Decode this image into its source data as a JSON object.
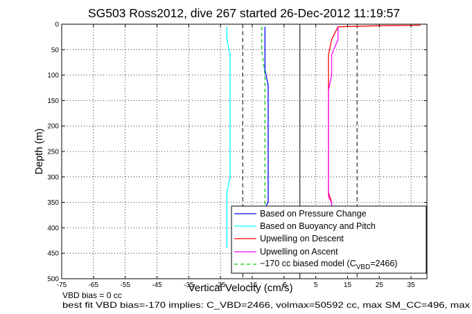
{
  "chart_data": {
    "type": "line",
    "title": "SG503 Ross2012, dive 267 started 26-Dec-2012 11:19:57",
    "xlabel": "Vertical Velocity (cm/s)",
    "ylabel": "Depth (m)",
    "xlim": [
      -75,
      40
    ],
    "ylim": [
      0,
      500
    ],
    "y_reversed": true,
    "grid": true,
    "x_ticks": [
      -75,
      -65,
      -55,
      -45,
      -35,
      -25,
      -15,
      -5,
      5,
      15,
      25,
      35
    ],
    "y_ticks": [
      0,
      50,
      100,
      150,
      200,
      250,
      300,
      350,
      400,
      450,
      500
    ],
    "legend_position": "bottom-right",
    "series": [
      {
        "name": "Based on Pressure Change",
        "color": "#0000ff",
        "x": [
          -11,
          -11,
          -11,
          -11,
          -10,
          -10,
          -10,
          -10,
          -10,
          -10,
          -10,
          -10,
          -10,
          -11,
          -11,
          -11,
          -11
        ],
        "y": [
          5,
          30,
          60,
          90,
          120,
          150,
          180,
          210,
          240,
          270,
          300,
          330,
          350,
          360,
          380,
          400,
          430
        ]
      },
      {
        "name": "Based on Buoyancy and Pitch",
        "color": "#00ffff",
        "x": [
          -23,
          -23,
          -22,
          -22,
          -22,
          -22,
          -22,
          -22,
          -22,
          -22,
          -22,
          -23,
          -23,
          -23
        ],
        "y": [
          5,
          30,
          60,
          90,
          120,
          150,
          180,
          210,
          240,
          270,
          300,
          330,
          370,
          440
        ]
      },
      {
        "name": "Upwelling on Descent",
        "color": "#ff0000",
        "x": [
          38,
          25,
          12,
          10,
          9,
          9,
          9,
          9,
          9,
          9,
          9,
          10,
          10
        ],
        "y": [
          2,
          3,
          5,
          30,
          60,
          100,
          150,
          200,
          250,
          300,
          330,
          350,
          360
        ]
      },
      {
        "name": "Upwelling on Ascent",
        "color": "#ff00ff",
        "x": [
          12,
          12,
          10,
          10,
          9,
          9,
          9,
          9,
          9,
          9,
          9,
          10,
          10
        ],
        "y": [
          5,
          30,
          60,
          100,
          130,
          150,
          200,
          250,
          300,
          320,
          340,
          350,
          360
        ]
      },
      {
        "name": "−170 cc biased model (C_VBD=2466)",
        "color": "#00cc00",
        "dashed": true,
        "x": [
          -12,
          -12,
          -11,
          -11,
          -11,
          -11,
          -11,
          -11,
          -11,
          -11,
          -11
        ],
        "y": [
          5,
          50,
          100,
          150,
          200,
          250,
          300,
          330,
          350,
          380,
          430
        ]
      }
    ],
    "legend_labels": {
      "s1": "Based on Pressure Change",
      "s2": "Based on Buoyancy and Pitch",
      "s3": "Upwelling on Descent",
      "s4": "Upwelling on Ascent",
      "s5_prefix": "−170 cc biased model (C",
      "s5_sub": "VBD",
      "s5_suffix": "=2466)"
    },
    "bias_lines_x": [
      -18,
      18
    ]
  },
  "footer": {
    "line1": "VBD bias = 0 cc",
    "line2": "best fit VBD bias=-170 implies: C_VBD=2466, volmax=50592 cc, max SM_CC=496, max"
  }
}
